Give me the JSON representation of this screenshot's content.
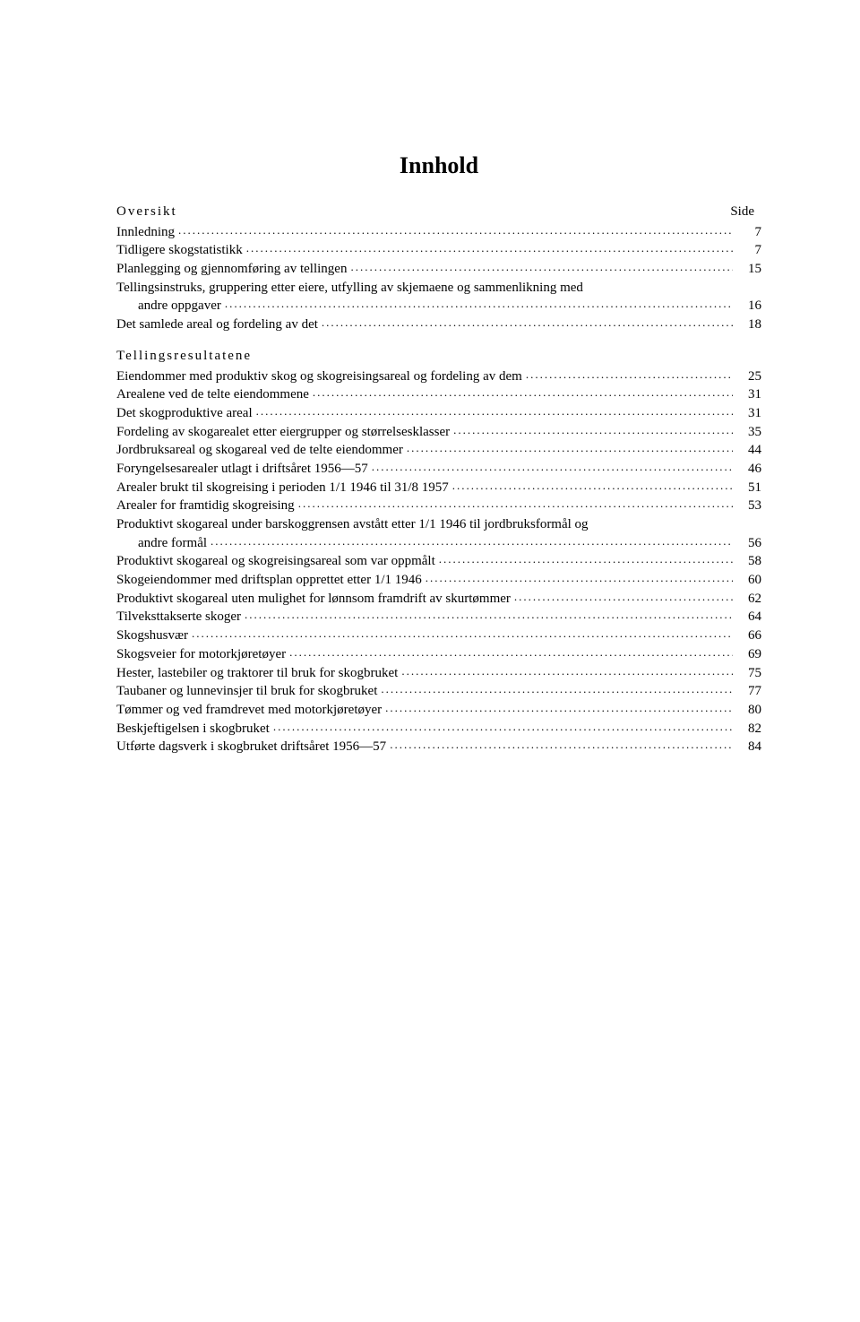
{
  "title": "Innhold",
  "header": {
    "left": "Oversikt",
    "right": "Side"
  },
  "section1": [
    {
      "label": "Innledning",
      "page": "7",
      "indent": false
    },
    {
      "label": "Tidligere skogstatistikk",
      "page": "7",
      "indent": false
    },
    {
      "label": "Planlegging og gjennomføring av tellingen",
      "page": "15",
      "indent": false
    },
    {
      "label": "Tellingsinstruks, gruppering etter eiere, utfylling av skjemaene og sammenlikning med",
      "page": "",
      "indent": false,
      "nodots": true
    },
    {
      "label": "andre oppgaver",
      "page": "16",
      "indent": true
    },
    {
      "label": "Det samlede areal og fordeling av det",
      "page": "18",
      "indent": false
    }
  ],
  "section2_title": "Tellingsresultatene",
  "section2": [
    {
      "label": "Eiendommer med produktiv skog og skogreisingsareal og fordeling av dem",
      "page": "25",
      "indent": false
    },
    {
      "label": "Arealene ved de telte eiendommene",
      "page": "31",
      "indent": false
    },
    {
      "label": "Det skogproduktive areal",
      "page": "31",
      "indent": false
    },
    {
      "label": "Fordeling av skogarealet etter eiergrupper og størrelsesklasser",
      "page": "35",
      "indent": false
    },
    {
      "label": "Jordbruksareal og skogareal ved de telte eiendommer",
      "page": "44",
      "indent": false
    },
    {
      "label": "Foryngelsesarealer utlagt i driftsåret 1956—57",
      "page": "46",
      "indent": false
    },
    {
      "label": "Arealer brukt til skogreising i perioden 1/1 1946 til 31/8 1957",
      "page": "51",
      "indent": false
    },
    {
      "label": "Arealer for framtidig skogreising",
      "page": "53",
      "indent": false
    },
    {
      "label": "Produktivt skogareal under barskoggrensen avstått etter 1/1 1946 til jordbruksformål og",
      "page": "",
      "indent": false,
      "nodots": true
    },
    {
      "label": "andre formål",
      "page": "56",
      "indent": true
    },
    {
      "label": "Produktivt skogareal og skogreisingsareal som var oppmålt",
      "page": "58",
      "indent": false
    },
    {
      "label": "Skogeiendommer med driftsplan opprettet etter 1/1 1946",
      "page": "60",
      "indent": false
    },
    {
      "label": "Produktivt skogareal uten mulighet for lønnsom framdrift av skurtømmer",
      "page": "62",
      "indent": false
    },
    {
      "label": "Tilveksttakserte skoger",
      "page": "64",
      "indent": false
    },
    {
      "label": "Skogshusvær",
      "page": "66",
      "indent": false
    },
    {
      "label": "Skogsveier for motorkjøretøyer",
      "page": "69",
      "indent": false
    },
    {
      "label": "Hester, lastebiler og traktorer til bruk for skogbruket",
      "page": "75",
      "indent": false
    },
    {
      "label": "Taubaner og lunnevinsjer til bruk for skogbruket",
      "page": "77",
      "indent": false
    },
    {
      "label": "Tømmer og ved framdrevet med motorkjøretøyer",
      "page": "80",
      "indent": false
    },
    {
      "label": "Beskjeftigelsen i skogbruket",
      "page": "82",
      "indent": false
    },
    {
      "label": "Utførte dagsverk i skogbruket driftsåret 1956—57",
      "page": "84",
      "indent": false
    }
  ]
}
